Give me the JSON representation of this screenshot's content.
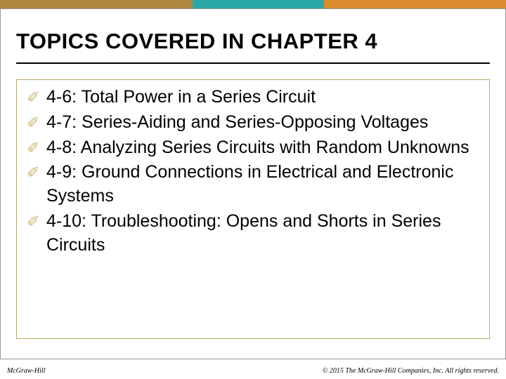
{
  "colors": {
    "accent1": "#b08840",
    "accent2": "#2aa8a8",
    "accent3": "#d98c2e",
    "bullet": "#c8b878",
    "content_border": "#b5a76a",
    "outer_border": "#999999",
    "text": "#000000",
    "background": "#ffffff"
  },
  "typography": {
    "title_fontsize": 31,
    "title_weight": 700,
    "body_fontsize": 25,
    "body_lineheight": 1.35,
    "footer_fontsize": 10
  },
  "title": "TOPICS COVERED IN CHAPTER 4",
  "bullet_glyph": "✐",
  "topics": [
    "4-6: Total Power in a Series Circuit",
    "4-7: Series-Aiding and Series-Opposing Voltages",
    "4-8: Analyzing Series Circuits with Random Unknowns",
    "4-9: Ground Connections in Electrical and Electronic Systems",
    "4-10: Troubleshooting: Opens and Shorts in Series Circuits"
  ],
  "footer": {
    "left": "McGraw-Hill",
    "right": "© 2015 The McGraw-Hill Companies, Inc. All rights reserved."
  }
}
